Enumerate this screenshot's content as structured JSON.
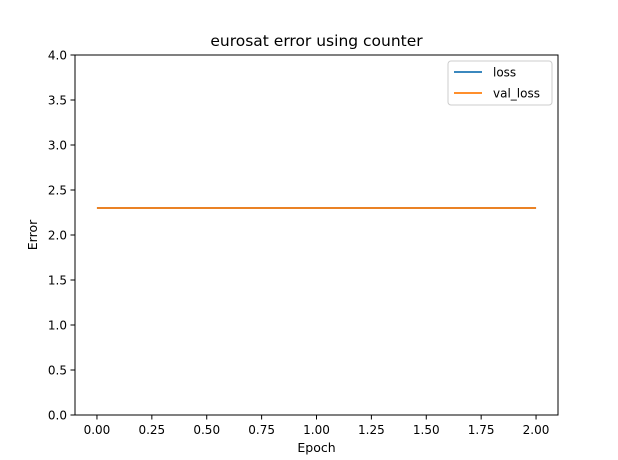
{
  "chart_data": {
    "type": "line",
    "title": "eurosat error using counter",
    "xlabel": "Epoch",
    "ylabel": "Error",
    "xlim": [
      -0.1,
      2.1
    ],
    "ylim": [
      0.0,
      4.0
    ],
    "xticks": [
      0.0,
      0.25,
      0.5,
      0.75,
      1.0,
      1.25,
      1.5,
      1.75,
      2.0
    ],
    "xtick_labels": [
      "0.00",
      "0.25",
      "0.50",
      "0.75",
      "1.00",
      "1.25",
      "1.50",
      "1.75",
      "2.00"
    ],
    "yticks": [
      0.0,
      0.5,
      1.0,
      1.5,
      2.0,
      2.5,
      3.0,
      3.5,
      4.0
    ],
    "ytick_labels": [
      "0.0",
      "0.5",
      "1.0",
      "1.5",
      "2.0",
      "2.5",
      "3.0",
      "3.5",
      "4.0"
    ],
    "grid": false,
    "legend_position": "top-right",
    "series": [
      {
        "name": "loss",
        "color": "#1f77b4",
        "x": [
          0,
          1,
          2
        ],
        "y": [
          2.3,
          2.3,
          2.3
        ]
      },
      {
        "name": "val_loss",
        "color": "#ff7f0e",
        "x": [
          0,
          1,
          2
        ],
        "y": [
          2.3,
          2.3,
          2.3
        ]
      }
    ]
  }
}
